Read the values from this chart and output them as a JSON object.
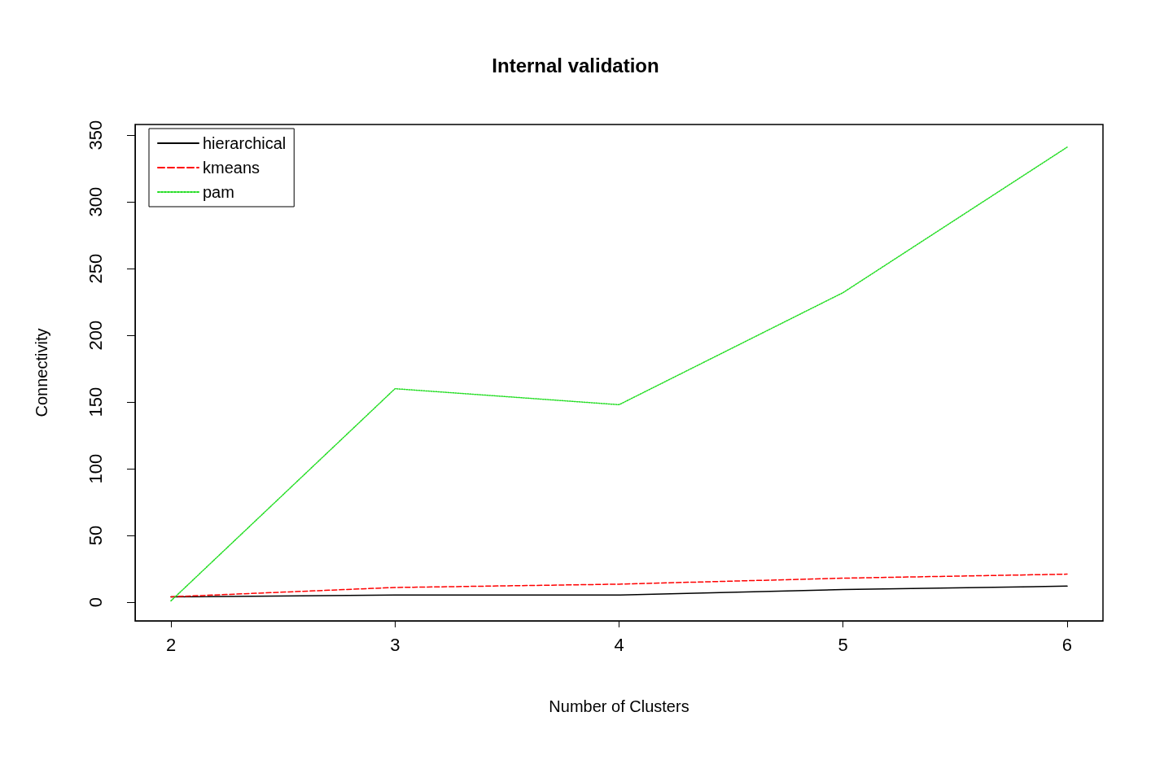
{
  "chart_data": {
    "type": "line",
    "title": "Internal validation",
    "xlabel": "Number of Clusters",
    "ylabel": "Connectivity",
    "x": [
      2,
      3,
      4,
      5,
      6
    ],
    "xlim": [
      1.84,
      6.16
    ],
    "xticks": [
      2,
      3,
      4,
      5,
      6
    ],
    "ylim": [
      -14,
      358
    ],
    "yticks": [
      0,
      50,
      100,
      150,
      200,
      250,
      300,
      350
    ],
    "grid": false,
    "legend": "top left",
    "marker": "none",
    "series": [
      {
        "name": "hierarchical",
        "color": "#000000",
        "line_style": "solid",
        "values": [
          4,
          5.3,
          5.3,
          9.5,
          12
        ]
      },
      {
        "name": "kmeans",
        "color": "#ff0000",
        "line_style": "dashed",
        "values": [
          4,
          11,
          13.5,
          18,
          21
        ]
      },
      {
        "name": "pam",
        "color": "#22dd22",
        "line_style": "dotted",
        "values": [
          1,
          160,
          148,
          232,
          341
        ]
      }
    ]
  }
}
